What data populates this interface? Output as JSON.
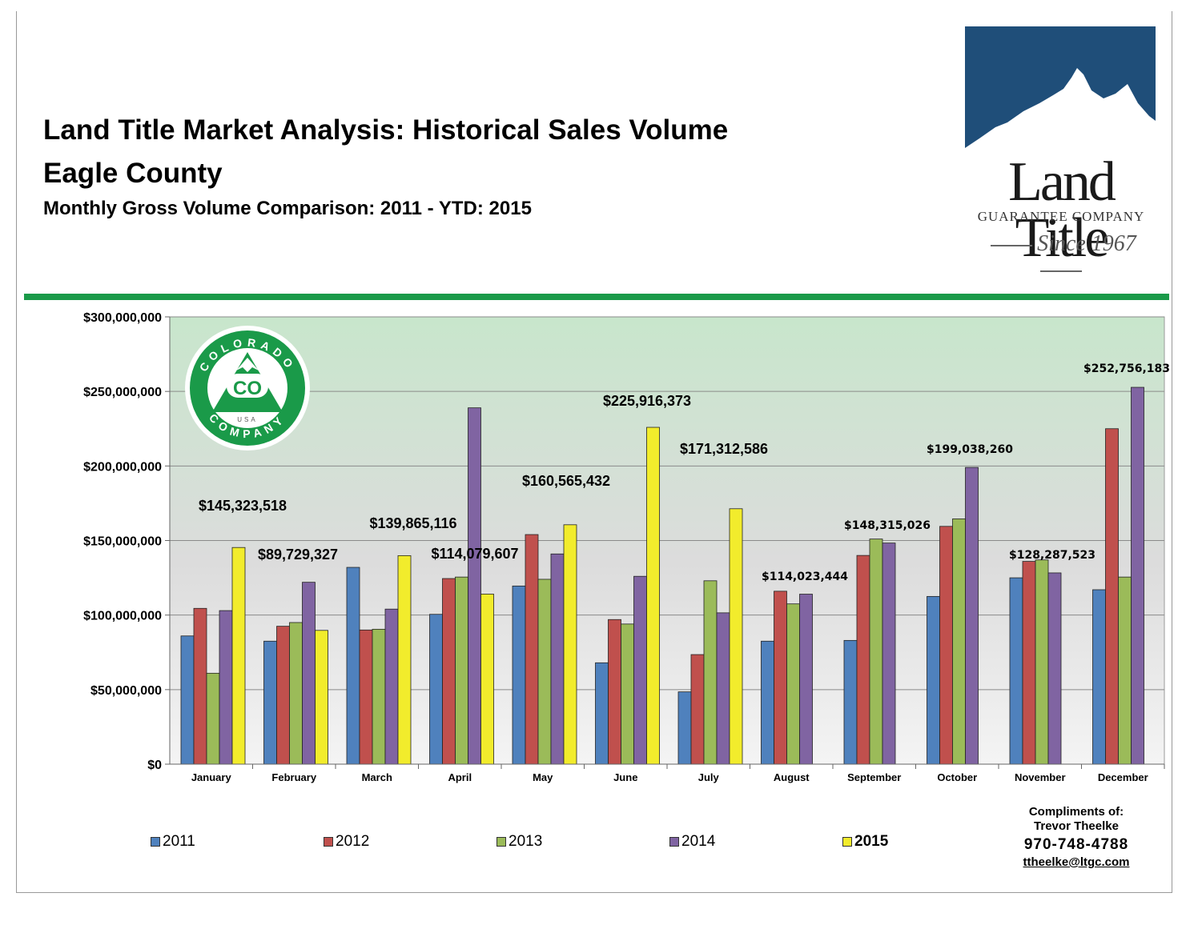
{
  "header": {
    "title_line1": "Land Title Market Analysis: Historical Sales Volume",
    "title_line2": "Eagle County",
    "subtitle": "Monthly Gross Volume Comparison: 2011 - YTD: 2015"
  },
  "logo": {
    "name": "Land Title",
    "tagline": "GUARANTEE COMPANY",
    "since": "Since 1967"
  },
  "badge": {
    "top_text": "COLORADO",
    "center_text": "CO",
    "middle_text": "USA",
    "bottom_text": "COMPANY"
  },
  "colors": {
    "2011": "#4f81bd",
    "2012": "#c0504d",
    "2013": "#9bbb59",
    "2014": "#8064a2",
    "2015": "#f2ec2c",
    "green_rule": "#1a9a49",
    "badge_green": "#1a9a49"
  },
  "chart_data": {
    "type": "bar",
    "title": "",
    "xlabel": "",
    "ylabel": "",
    "ylim": [
      0,
      300000000
    ],
    "yticks": [
      "$0",
      "$50,000,000",
      "$100,000,000",
      "$150,000,000",
      "$200,000,000",
      "$250,000,000",
      "$300,000,000"
    ],
    "grid": true,
    "legend_placement": "bottom",
    "categories": [
      "January",
      "February",
      "March",
      "April",
      "May",
      "June",
      "July",
      "August",
      "September",
      "October",
      "November",
      "December"
    ],
    "series": [
      {
        "name": "2011",
        "values": [
          86000000,
          82500000,
          132000000,
          100500000,
          119500000,
          68000000,
          48500000,
          82500000,
          83000000,
          112500000,
          125000000,
          117000000
        ]
      },
      {
        "name": "2012",
        "values": [
          104500000,
          92500000,
          90000000,
          124500000,
          154000000,
          97000000,
          73500000,
          116000000,
          140000000,
          159500000,
          136000000,
          225000000
        ]
      },
      {
        "name": "2013",
        "values": [
          61000000,
          95000000,
          90500000,
          125500000,
          124000000,
          94000000,
          123000000,
          107500000,
          151000000,
          164500000,
          137000000,
          125500000
        ]
      },
      {
        "name": "2014",
        "values": [
          103000000,
          122000000,
          104000000,
          239000000,
          141000000,
          126000000,
          101500000,
          114023444,
          148315026,
          199038260,
          128287523,
          252756183
        ]
      },
      {
        "name": "2015",
        "values": [
          145323518,
          89729327,
          139865116,
          114079607,
          160565432,
          225916373,
          171312586,
          null,
          null,
          null,
          null,
          null
        ]
      }
    ],
    "annotations": [
      {
        "text": "$145,323,518",
        "category": "January",
        "style": "bold"
      },
      {
        "text": "$89,729,327",
        "category": "February",
        "style": "bold"
      },
      {
        "text": "$139,865,116",
        "category": "March",
        "style": "bold"
      },
      {
        "text": "$114,079,607",
        "category": "April",
        "style": "bold"
      },
      {
        "text": "$160,565,432",
        "category": "May",
        "style": "bold"
      },
      {
        "text": "$225,916,373",
        "category": "June",
        "style": "bold"
      },
      {
        "text": "$171,312,586",
        "category": "July",
        "style": "bold"
      },
      {
        "text": "$114,023,444",
        "category": "August",
        "style": "normal"
      },
      {
        "text": "$148,315,026",
        "category": "September",
        "style": "normal"
      },
      {
        "text": "$199,038,260",
        "category": "October",
        "style": "normal"
      },
      {
        "text": "$128,287,523",
        "category": "November",
        "style": "normal"
      },
      {
        "text": "$252,756,183",
        "category": "December",
        "style": "normal"
      }
    ]
  },
  "compliments": {
    "line1": "Compliments of:",
    "line2": "Trevor Theelke",
    "phone": "970-748-4788",
    "email": "ttheelke@ltgc.com"
  }
}
